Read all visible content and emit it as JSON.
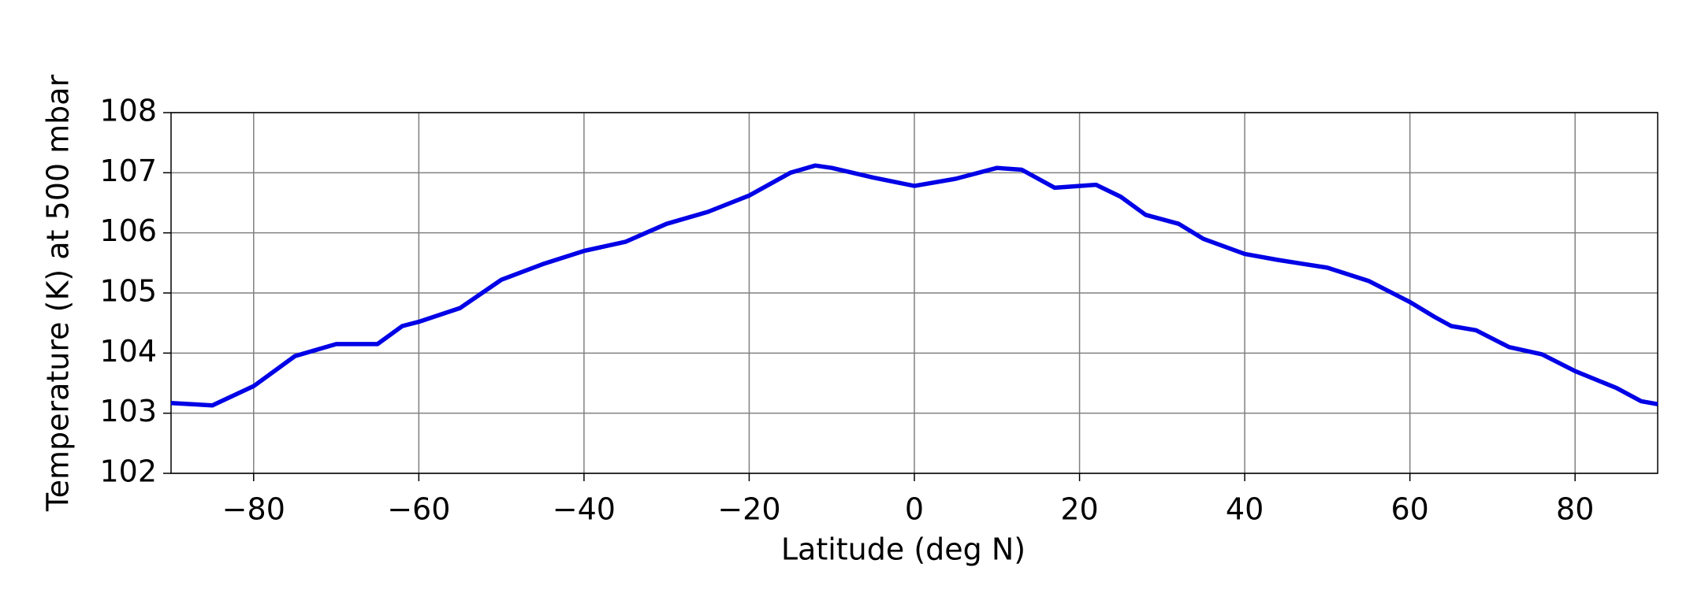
{
  "chart_data": {
    "type": "line",
    "xlabel": "Latitude (deg N)",
    "ylabel": "Temperature (K) at 500 mbar",
    "x": [
      -90,
      -85,
      -80,
      -75,
      -70,
      -65,
      -62,
      -60,
      -55,
      -50,
      -45,
      -40,
      -35,
      -30,
      -25,
      -20,
      -15,
      -12,
      -10,
      -5,
      0,
      5,
      10,
      13,
      17,
      22,
      25,
      28,
      32,
      35,
      40,
      44,
      50,
      55,
      60,
      63,
      65,
      68,
      72,
      76,
      80,
      85,
      88,
      90
    ],
    "series": [
      {
        "color": "#0000e6",
        "values": [
          103.17,
          103.13,
          103.45,
          103.95,
          104.15,
          104.15,
          104.45,
          104.52,
          104.75,
          105.22,
          105.48,
          105.7,
          105.85,
          106.15,
          106.35,
          106.62,
          107.0,
          107.12,
          107.08,
          106.92,
          106.78,
          106.9,
          107.08,
          107.05,
          106.75,
          106.8,
          106.6,
          106.3,
          106.15,
          105.9,
          105.65,
          105.55,
          105.42,
          105.2,
          104.85,
          104.6,
          104.45,
          104.38,
          104.1,
          103.98,
          103.7,
          103.42,
          103.2,
          103.15
        ]
      }
    ],
    "xlim": [
      -90,
      90
    ],
    "xticks": [
      {
        "value": -80,
        "label": "−80"
      },
      {
        "value": -60,
        "label": "−60"
      },
      {
        "value": -40,
        "label": "−40"
      },
      {
        "value": -20,
        "label": "−20"
      },
      0,
      20,
      40,
      60,
      80
    ],
    "ylim": [
      102,
      108
    ],
    "yticks": [
      102,
      103,
      104,
      105,
      106,
      107,
      108
    ],
    "grid": true
  }
}
